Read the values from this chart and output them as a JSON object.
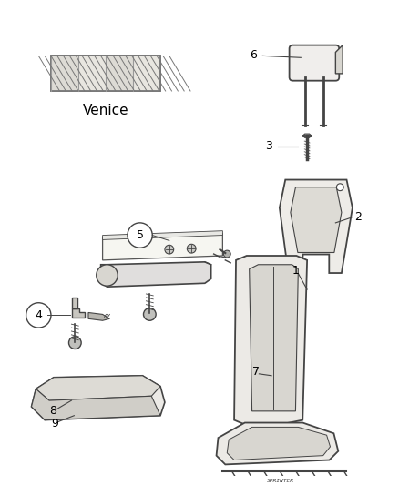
{
  "background_color": "#ffffff",
  "fabric_label": "Venice",
  "line_color": "#444444",
  "text_color": "#000000",
  "fig_w": 4.38,
  "fig_h": 5.33,
  "dpi": 100
}
